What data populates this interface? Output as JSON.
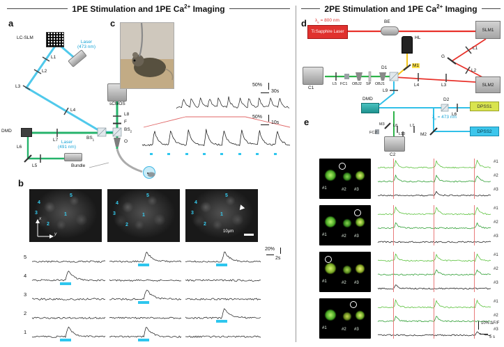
{
  "title_left": {
    "pre": "1PE Stimulation and 1PE Ca",
    "sup": "2+",
    "post": " Imaging"
  },
  "title_right": {
    "pre": "2PE Stimulation and 1PE Ca",
    "sup": "2+",
    "post": " Imaging"
  },
  "panels": {
    "a": "a",
    "b": "b",
    "c": "c",
    "d": "d",
    "e": "e"
  },
  "colors": {
    "beam_blue": "#31c0e8",
    "beam_green": "#00a651",
    "beam_red": "#e8312a",
    "beam_yellow": "#f5c518",
    "stim_cyan": "#2ec6ee",
    "trace_green": "#5cc23d",
    "dpss1_bg": "#d9e44e",
    "dpss2_bg": "#3cc6ec"
  },
  "panel_a": {
    "lc_slm": "LC-SLM",
    "laser473_l1": "Laser",
    "laser473_l2": "(473 nm)",
    "l1": "L1",
    "l2": "L2",
    "l3": "L3",
    "l4": "L4",
    "l5": "L5",
    "l6": "L6",
    "l7": "L7",
    "l8": "L8",
    "f": "F",
    "bs1": "BS",
    "bs1_sub": "1",
    "bs2": "BS",
    "bs2_sub": "2",
    "scmos": "sCMOS",
    "dmd": "DMD",
    "laser491_l1": "Laser",
    "laser491_l2": "(491 nm)",
    "objective": "O",
    "bundle": "Bundle"
  },
  "panel_c": {
    "s1_amp": "50%",
    "s1_time": "30s",
    "s2_amp": "50%",
    "s2_time": "10s"
  },
  "panel_b": {
    "x": "x",
    "y": "y",
    "scalebar": "10µm",
    "n1": "1",
    "n2": "2",
    "n3": "3",
    "n4": "4",
    "n5": "5",
    "rows": [
      "5",
      "4",
      "3",
      "2",
      "1"
    ],
    "amp": "20%",
    "time": "2s"
  },
  "panel_d": {
    "wl800_pre": "λ",
    "wl800_sub": "e",
    "wl800_post": " = 800 nm",
    "laser": "Ti:Sapphire Laser",
    "be": "BE",
    "slm1": "SLM1",
    "slm2": "SLM2",
    "hl": "HL",
    "m1": "M1",
    "m2": "M2",
    "m3": "M3",
    "d1": "D1",
    "d2": "D2",
    "g": "G",
    "l1": "L1",
    "l2": "L2",
    "l3": "L3",
    "l4": "L4",
    "l5": "L5",
    "l6": "L6",
    "l7": "L7",
    "l8": "L8",
    "l9": "L9",
    "l10": "L10",
    "c1": "C1",
    "c2": "C2",
    "fc1": "FC1",
    "fc2": "FC2",
    "obj1": "OBJ1",
    "obj2": "OBJ2",
    "sp": "SP",
    "dmd": "DMD",
    "dpss1": "DPSS1",
    "dpss2": "DPSS2",
    "wl473_pre": "λ",
    "wl473_sub": "e",
    "wl473_post": " = 473 nm"
  },
  "panel_e": {
    "img_labels": [
      "#1",
      "#2",
      "#3"
    ],
    "trace_labels": [
      "#1",
      "#2",
      "#3"
    ],
    "scale_amp": "10% ΔF/F",
    "scale_time": "5 s"
  }
}
